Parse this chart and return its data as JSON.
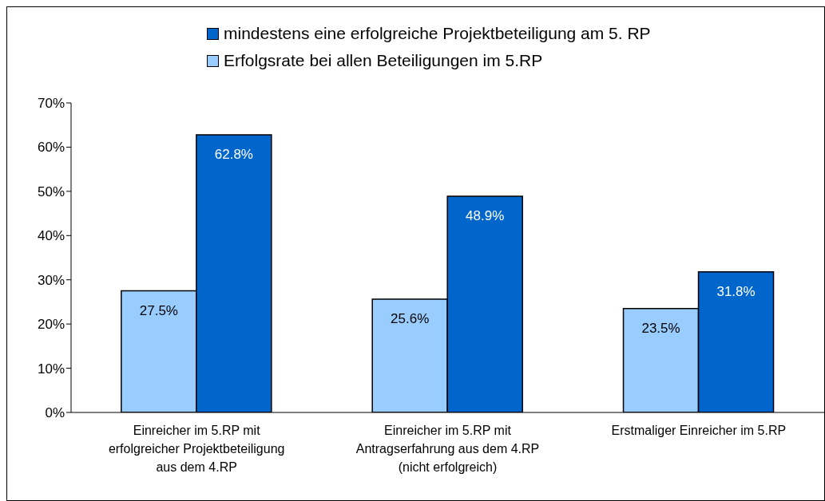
{
  "chart_data": {
    "type": "bar",
    "categories": [
      "Einreicher im 5.RP mit erfolgreicher Projektbeteiligung aus dem 4.RP",
      "Einreicher im 5.RP mit Antragserfahrung aus dem 4.RP (nicht erfolgreich)",
      "Erstmaliger Einreicher im 5.RP"
    ],
    "series": [
      {
        "name": "Erfolgsrate bei allen Beteiligungen im 5.RP",
        "color": "#99ccff",
        "values": [
          27.5,
          25.6,
          23.5
        ],
        "value_labels": [
          "27.5%",
          "25.6%",
          "23.5%"
        ]
      },
      {
        "name": "mindestens eine erfolgreiche Projektbeteiligung am 5. RP",
        "color": "#0066cc",
        "values": [
          62.8,
          48.9,
          31.8
        ],
        "value_labels": [
          "62.8%",
          "48.9%",
          "31.8%"
        ]
      }
    ],
    "ylim": [
      0,
      70
    ],
    "yticks": [
      {
        "value": 0,
        "label": "0%"
      },
      {
        "value": 10,
        "label": "10%"
      },
      {
        "value": 20,
        "label": "20%"
      },
      {
        "value": 30,
        "label": "30%"
      },
      {
        "value": 40,
        "label": "40%"
      },
      {
        "value": 50,
        "label": "50%"
      },
      {
        "value": 60,
        "label": "60%"
      },
      {
        "value": 70,
        "label": "70%"
      }
    ],
    "grid": false,
    "legend": "top"
  }
}
